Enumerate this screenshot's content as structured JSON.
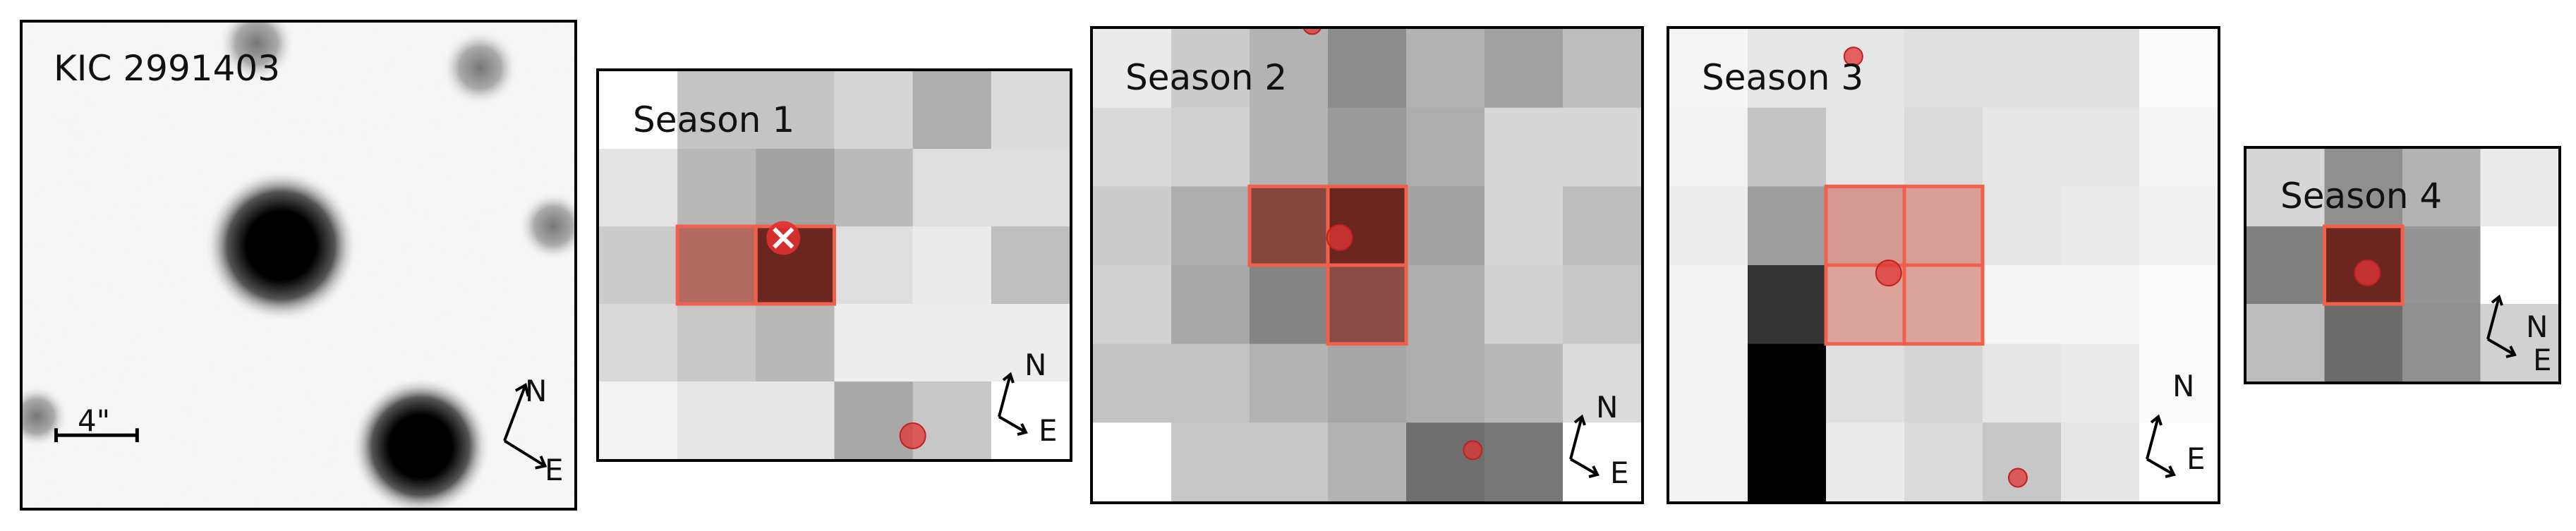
{
  "star_panel": {
    "title": "KIC 2991403",
    "scale_label": "4\""
  },
  "compass": {
    "north": "N",
    "east": "E"
  },
  "seasons": [
    {
      "label": "Season 1",
      "cols": 6,
      "rows": 5,
      "shade": [
        [
          1.0,
          0.77,
          0.77,
          0.84,
          0.68,
          0.86
        ],
        [
          0.89,
          0.72,
          0.64,
          0.73,
          0.87,
          0.87
        ],
        [
          0.8,
          0.8,
          0.78,
          0.87,
          0.92,
          0.75
        ],
        [
          0.85,
          0.78,
          0.72,
          0.93,
          0.93,
          0.93
        ],
        [
          0.95,
          0.9,
          0.9,
          0.66,
          0.78,
          1.0
        ]
      ],
      "aperture": [
        {
          "c": 1,
          "r": 2,
          "color": "#b06a60"
        },
        {
          "c": 2,
          "r": 2,
          "color": "#6b2620"
        }
      ],
      "markers": [
        {
          "c": 2.35,
          "r": 2.15,
          "type": "target"
        },
        {
          "c": 4.0,
          "r": 4.7,
          "type": "dot",
          "size": "large"
        }
      ]
    },
    {
      "label": "Season 2",
      "cols": 7,
      "rows": 6,
      "shade": [
        [
          0.92,
          0.8,
          0.7,
          0.55,
          0.7,
          0.63,
          0.74
        ],
        [
          0.85,
          0.82,
          0.7,
          0.6,
          0.68,
          0.84,
          0.84
        ],
        [
          0.8,
          0.68,
          0.55,
          0.45,
          0.64,
          0.84,
          0.74
        ],
        [
          0.82,
          0.66,
          0.52,
          0.5,
          0.68,
          0.82,
          0.78
        ],
        [
          0.76,
          0.76,
          0.7,
          0.65,
          0.68,
          0.72,
          0.86
        ],
        [
          1.0,
          0.78,
          0.78,
          0.7,
          0.43,
          0.47,
          1.0
        ]
      ],
      "aperture": [
        {
          "c": 2,
          "r": 2,
          "color": "#85463e"
        },
        {
          "c": 3,
          "r": 2,
          "color": "#6b2620"
        },
        {
          "c": 3,
          "r": 3,
          "color": "#8a4c44"
        }
      ],
      "markers": [
        {
          "c": 3.15,
          "r": 2.65,
          "type": "dot",
          "size": "large"
        },
        {
          "c": 2.8,
          "r": -0.05,
          "type": "dot",
          "size": "small"
        },
        {
          "c": 4.85,
          "r": 5.35,
          "type": "dot",
          "size": "small"
        }
      ]
    },
    {
      "label": "Season 3",
      "cols": 7,
      "rows": 6,
      "shade": [
        [
          0.96,
          0.9,
          0.9,
          0.88,
          0.88,
          0.88,
          0.98
        ],
        [
          0.95,
          0.77,
          0.9,
          0.86,
          0.9,
          0.9,
          0.96
        ],
        [
          0.93,
          0.62,
          0.84,
          0.86,
          0.9,
          0.92,
          0.94
        ],
        [
          0.95,
          0.2,
          0.9,
          0.92,
          0.96,
          0.96,
          0.98
        ],
        [
          0.95,
          0.0,
          0.88,
          0.84,
          0.9,
          0.92,
          0.98
        ],
        [
          0.95,
          0.0,
          0.92,
          0.86,
          0.78,
          0.9,
          1.0
        ]
      ],
      "aperture": [
        {
          "c": 2,
          "r": 2,
          "color": "#d49990"
        },
        {
          "c": 3,
          "r": 2,
          "color": "#d89d94"
        },
        {
          "c": 2,
          "r": 3,
          "color": "#dba399"
        },
        {
          "c": 3,
          "r": 3,
          "color": "#dba399"
        }
      ],
      "markers": [
        {
          "c": 2.8,
          "r": 3.1,
          "type": "dot",
          "size": "large"
        },
        {
          "c": 2.35,
          "r": 0.35,
          "type": "dot",
          "size": "small"
        },
        {
          "c": 4.45,
          "r": 5.7,
          "type": "dot",
          "size": "small"
        }
      ]
    },
    {
      "label": "Season 4",
      "cols": 4,
      "rows": 3,
      "shade": [
        [
          0.84,
          0.56,
          0.7,
          0.92
        ],
        [
          0.5,
          0.45,
          0.58,
          1.0
        ],
        [
          0.74,
          0.42,
          0.56,
          0.82
        ]
      ],
      "aperture": [
        {
          "c": 1,
          "r": 1,
          "color": "#6b2620"
        }
      ],
      "markers": [
        {
          "c": 1.55,
          "r": 1.6,
          "type": "dot",
          "size": "large"
        }
      ]
    }
  ]
}
